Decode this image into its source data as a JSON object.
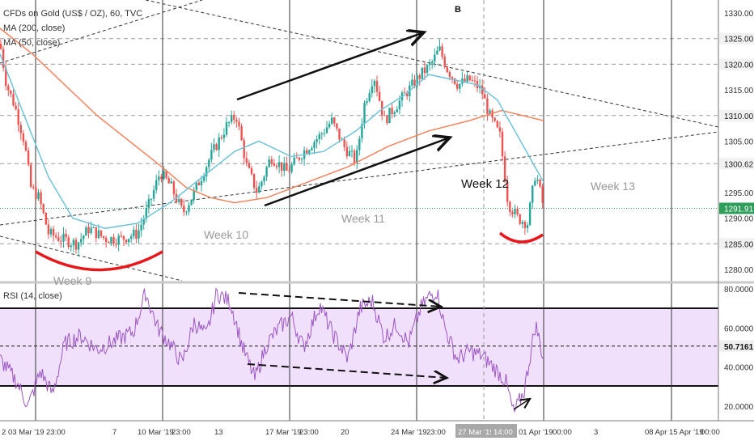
{
  "header": {
    "title": "CFDs on Gold (US$ / OZ), 60, TVC",
    "ma200_label": "MA (200, close)",
    "ma50_label": "MA (50, close)",
    "rsi_label": "RSI (14, close)"
  },
  "annotations": {
    "point_b": "B",
    "week9": "Week 9",
    "week10": "Week 10",
    "week11": "Week 11",
    "week12": "Week 12",
    "week13": "Week 13"
  },
  "price_axis": {
    "ticks": [
      "1330.00",
      "1325.00",
      "1320.00",
      "1315.00",
      "1310.00",
      "1305.00",
      "1300.62",
      "1295.00",
      "1291.91",
      "1290.00",
      "1285.00",
      "1280.00"
    ],
    "current_price": "1291.91",
    "highlight_level": "1300.62"
  },
  "rsi_axis": {
    "ticks": [
      "80.0000",
      "60.0000",
      "50.7161",
      "40.0000",
      "20.0000"
    ],
    "current_value": "50.7161"
  },
  "time_axis": {
    "labels": [
      "2",
      "03 Mar '19",
      "23:00",
      "7",
      "10 Mar '19",
      "23:00",
      "13",
      "17 Mar '19",
      "23:00",
      "20",
      "24 Mar '19",
      "23:00",
      "27 Mar '19",
      "14:00",
      "01 Apr '19",
      "00:00",
      "3",
      "08 Apr",
      "15 Apr '19",
      "00:00"
    ]
  },
  "colors": {
    "up": "#26a69a",
    "down": "#ef5350",
    "ma200": "#f4845f",
    "ma50": "#6fc3d9",
    "rsi": "#9c57c2",
    "rsi_band": "#f0e0fb",
    "price_line": "#2e9e5b",
    "trend": "#000000",
    "arc": "#e8171b"
  },
  "chart_data": [
    {
      "type": "candlestick",
      "title": "CFDs on Gold (US$ / OZ), 60, TVC",
      "y_range": [
        1278,
        1333
      ],
      "grid": true,
      "last_price": 1291.91,
      "series": [
        {
          "name": "MA (200, close)"
        },
        {
          "name": "MA (50, close)"
        }
      ],
      "x": [
        "02 Mar '19",
        "10 Mar '19",
        "17 Mar '19",
        "24 Mar '19",
        "01 Apr '19"
      ],
      "approx_price_path": [
        1324,
        1312,
        1290,
        1286,
        1286,
        1298,
        1291,
        1308,
        1295,
        1302,
        1307,
        1300,
        1318,
        1308,
        1323,
        1315,
        1318,
        1305,
        1290,
        1288,
        1299,
        1292
      ]
    },
    {
      "type": "line",
      "title": "RSI (14, close)",
      "y_range": [
        10,
        82
      ],
      "bands": [
        30,
        50,
        70
      ],
      "last_value": 50.7161,
      "series": [
        {
          "name": "RSI (14, close)"
        }
      ]
    }
  ]
}
